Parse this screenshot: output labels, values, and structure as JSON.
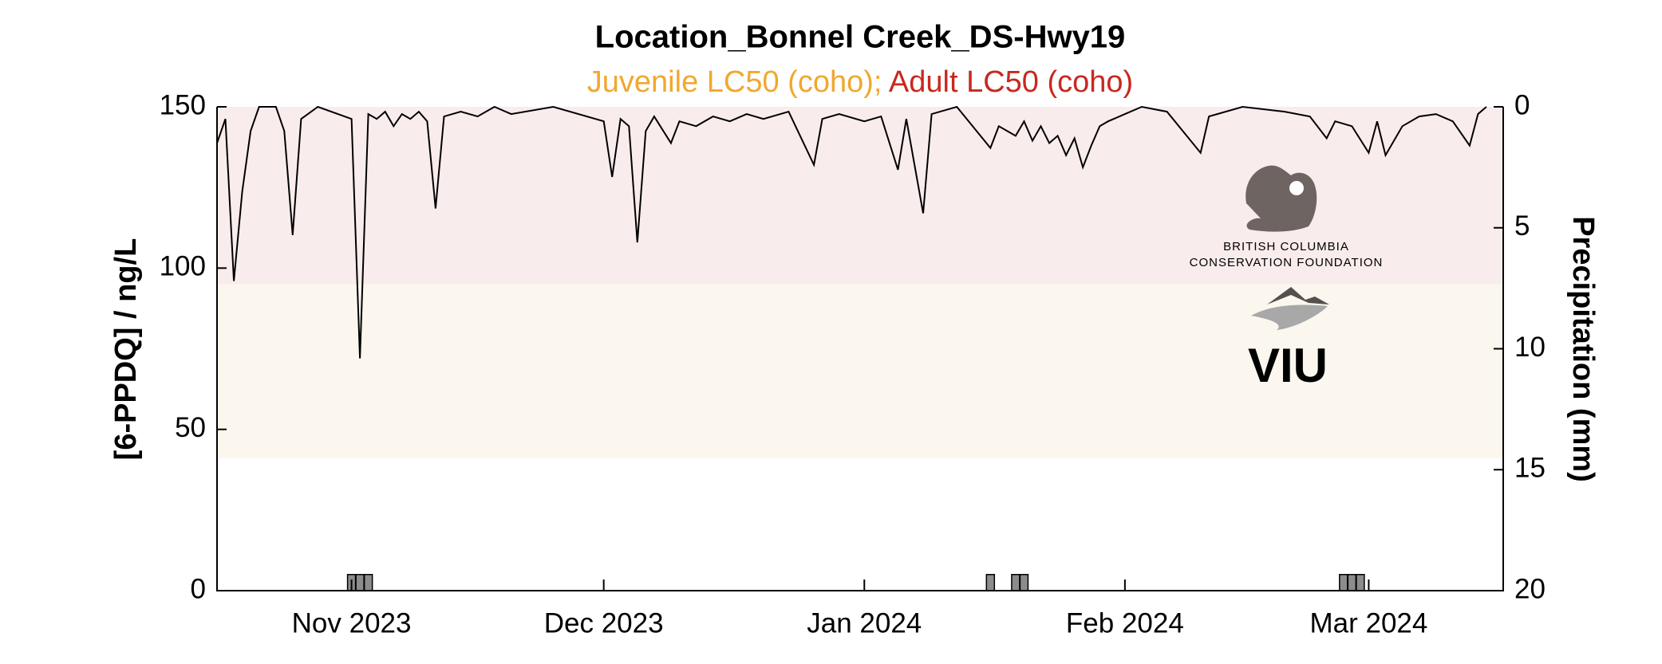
{
  "chart_data": {
    "type": "bar-line",
    "title": "Location_Bonnel Creek_DS-Hwy19",
    "subtitle": [
      {
        "text": "Juvenile LC50 (coho);",
        "color": "#f0a830"
      },
      {
        "text": "Adult LC50 (coho)",
        "color": "#c8281e"
      }
    ],
    "y_label": "[6-PPDQ] / ng/L",
    "y2_label": "Precipitation (mm)",
    "xlim": [
      "2023-10-16",
      "2024-03-17"
    ],
    "xticks": [
      {
        "value": "2023-11-01",
        "label": "Nov 2023"
      },
      {
        "value": "2023-12-01",
        "label": "Dec 2023"
      },
      {
        "value": "2024-01-01",
        "label": "Jan 2024"
      },
      {
        "value": "2024-02-01",
        "label": "Feb 2024"
      },
      {
        "value": "2024-03-01",
        "label": "Mar 2024"
      }
    ],
    "ylim": [
      0,
      150
    ],
    "yticks": [
      0,
      50,
      100,
      150
    ],
    "y2lim": [
      20,
      0
    ],
    "y2ticks": [
      0,
      5,
      10,
      15,
      20
    ],
    "lc50": [
      {
        "value": 41,
        "color": "#fbf6ee"
      },
      {
        "value": 95,
        "color": "#f9ecec"
      }
    ],
    "series": [
      {
        "kind": "bar",
        "color": "#8c8c8c",
        "x": [
          "2023-11-01",
          "2023-11-02",
          "2023-11-03",
          "2024-01-16",
          "2024-01-19",
          "2024-01-20",
          "2024-02-27",
          "2024-02-28",
          "2024-02-29"
        ],
        "values": [
          5,
          5,
          5,
          5,
          5,
          5,
          5,
          5,
          5
        ]
      },
      {
        "kind": "line",
        "axis": "y2",
        "color": "#000000",
        "x": [
          "2023-10-16",
          "2023-10-17",
          "2023-10-18",
          "2023-10-19",
          "2023-10-20",
          "2023-10-21",
          "2023-10-23",
          "2023-10-24",
          "2023-10-25",
          "2023-10-26",
          "2023-10-28",
          "2023-11-01",
          "2023-11-02",
          "2023-11-03",
          "2023-11-04",
          "2023-11-05",
          "2023-11-06",
          "2023-11-07",
          "2023-11-08",
          "2023-11-09",
          "2023-11-10",
          "2023-11-11",
          "2023-11-12",
          "2023-11-14",
          "2023-11-16",
          "2023-11-18",
          "2023-11-20",
          "2023-11-25",
          "2023-12-01",
          "2023-12-02",
          "2023-12-03",
          "2023-12-04",
          "2023-12-05",
          "2023-12-06",
          "2023-12-07",
          "2023-12-09",
          "2023-12-10",
          "2023-12-12",
          "2023-12-14",
          "2023-12-16",
          "2023-12-18",
          "2023-12-20",
          "2023-12-23",
          "2023-12-26",
          "2023-12-27",
          "2023-12-29",
          "2024-01-01",
          "2024-01-03",
          "2024-01-05",
          "2024-01-06",
          "2024-01-08",
          "2024-01-09",
          "2024-01-12",
          "2024-01-16",
          "2024-01-17",
          "2024-01-18",
          "2024-01-19",
          "2024-01-20",
          "2024-01-21",
          "2024-01-22",
          "2024-01-23",
          "2024-01-24",
          "2024-01-25",
          "2024-01-26",
          "2024-01-27",
          "2024-01-28",
          "2024-01-29",
          "2024-01-30",
          "2024-02-01",
          "2024-02-03",
          "2024-02-06",
          "2024-02-10",
          "2024-02-11",
          "2024-02-15",
          "2024-02-20",
          "2024-02-23",
          "2024-02-25",
          "2024-02-26",
          "2024-02-28",
          "2024-03-01",
          "2024-03-02",
          "2024-03-03",
          "2024-03-05",
          "2024-03-07",
          "2024-03-09",
          "2024-03-11",
          "2024-03-13",
          "2024-03-14",
          "2024-03-15"
        ],
        "values": [
          1.5,
          0.5,
          7.2,
          3.5,
          1.0,
          0,
          0,
          1.0,
          5.3,
          0.5,
          0,
          0.5,
          10.4,
          0.3,
          0.5,
          0.2,
          0.8,
          0.3,
          0.5,
          0.2,
          0.6,
          4.2,
          0.4,
          0.2,
          0.4,
          0,
          0.3,
          0,
          0.6,
          2.9,
          0.5,
          0.8,
          5.6,
          1.0,
          0.4,
          1.5,
          0.6,
          0.8,
          0.4,
          0.6,
          0.3,
          0.5,
          0.2,
          2.4,
          0.5,
          0.3,
          0.6,
          0.4,
          2.6,
          0.5,
          4.4,
          0.3,
          0,
          1.7,
          0.8,
          1.0,
          1.2,
          0.6,
          1.4,
          0.8,
          1.5,
          1.2,
          2.0,
          1.3,
          2.5,
          1.6,
          0.8,
          0.6,
          0.3,
          0,
          0.2,
          1.9,
          0.4,
          0,
          0.2,
          0.4,
          1.3,
          0.6,
          0.8,
          1.9,
          0.6,
          2.0,
          0.8,
          0.4,
          0.3,
          0.6,
          1.6,
          0.3,
          0
        ]
      }
    ]
  },
  "logos": {
    "bccf": [
      "BRITISH COLUMBIA",
      "CONSERVATION FOUNDATION"
    ],
    "viu": "VIU"
  }
}
